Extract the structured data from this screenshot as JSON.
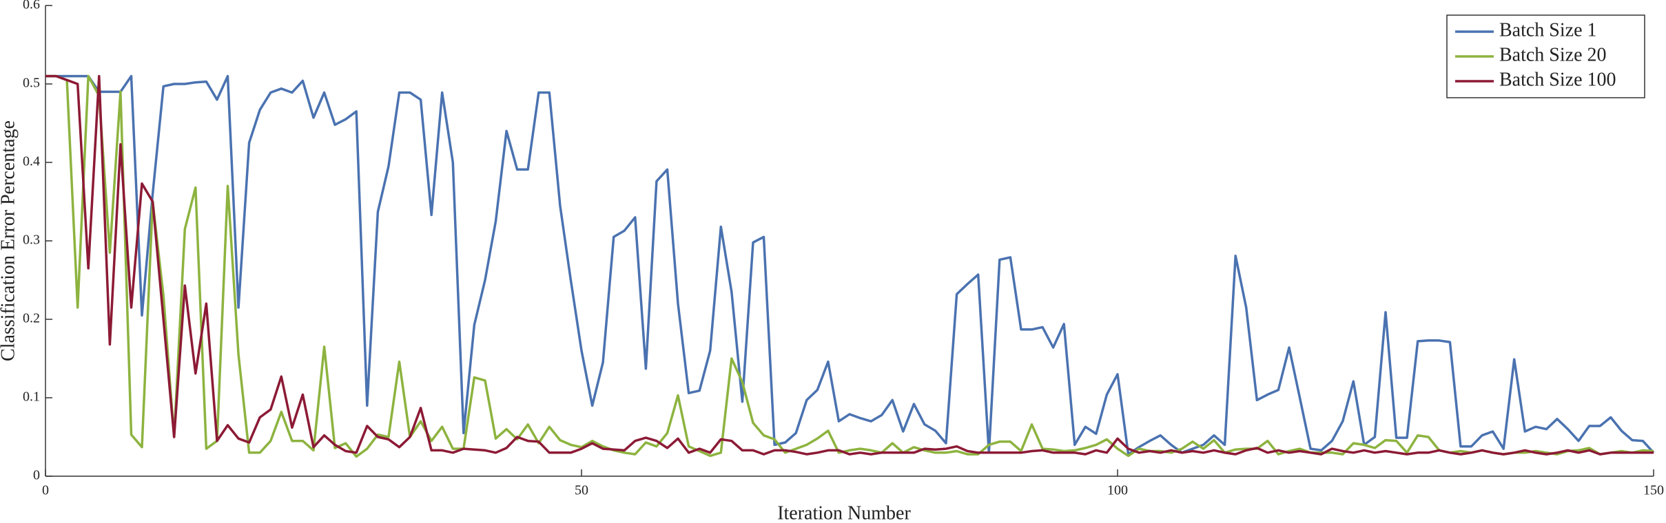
{
  "chart_data": {
    "type": "line",
    "xlabel": "Iteration Number",
    "ylabel": "Classification Error Percentage",
    "xlim": [
      0,
      150
    ],
    "ylim": [
      0,
      0.6
    ],
    "xticks": [
      0,
      50,
      100,
      150
    ],
    "yticks": [
      0,
      0.1,
      0.2,
      0.3,
      0.4,
      0.5,
      0.6
    ],
    "legend": "upper right",
    "grid": false,
    "x": [
      0,
      1,
      2,
      3,
      4,
      5,
      6,
      7,
      8,
      9,
      10,
      11,
      12,
      13,
      14,
      15,
      16,
      17,
      18,
      19,
      20,
      21,
      22,
      23,
      24,
      25,
      26,
      27,
      28,
      29,
      30,
      31,
      32,
      33,
      34,
      35,
      36,
      37,
      38,
      39,
      40,
      41,
      42,
      43,
      44,
      45,
      46,
      47,
      48,
      49,
      50,
      51,
      52,
      53,
      54,
      55,
      56,
      57,
      58,
      59,
      60,
      61,
      62,
      63,
      64,
      65,
      66,
      67,
      68,
      69,
      70,
      71,
      72,
      73,
      74,
      75,
      76,
      77,
      78,
      79,
      80,
      81,
      82,
      83,
      84,
      85,
      86,
      87,
      88,
      89,
      90,
      91,
      92,
      93,
      94,
      95,
      96,
      97,
      98,
      99,
      100,
      101,
      102,
      103,
      104,
      105,
      106,
      107,
      108,
      109,
      110,
      111,
      112,
      113,
      114,
      115,
      116,
      117,
      118,
      119,
      120,
      121,
      122,
      123,
      124,
      125,
      126,
      127,
      128,
      129,
      130,
      131,
      132,
      133,
      134,
      135,
      136,
      137,
      138,
      139,
      140,
      141,
      142,
      143,
      144,
      145,
      146,
      147,
      148,
      149,
      150
    ],
    "series": [
      {
        "name": "Batch Size 1",
        "color": "#4a72b0",
        "values": [
          0.51,
          0.51,
          0.51,
          0.51,
          0.51,
          0.49,
          0.49,
          0.49,
          0.51,
          0.205,
          0.36,
          0.497,
          0.5,
          0.5,
          0.502,
          0.503,
          0.48,
          0.51,
          0.215,
          0.425,
          0.467,
          0.489,
          0.494,
          0.489,
          0.504,
          0.457,
          0.489,
          0.448,
          0.455,
          0.465,
          0.09,
          0.337,
          0.395,
          0.489,
          0.489,
          0.48,
          0.333,
          0.489,
          0.4,
          0.055,
          0.193,
          0.25,
          0.325,
          0.44,
          0.391,
          0.391,
          0.489,
          0.489,
          0.345,
          0.25,
          0.16,
          0.09,
          0.145,
          0.305,
          0.313,
          0.33,
          0.137,
          0.376,
          0.391,
          0.22,
          0.106,
          0.109,
          0.16,
          0.318,
          0.235,
          0.095,
          0.298,
          0.305,
          0.04,
          0.043,
          0.055,
          0.097,
          0.11,
          0.146,
          0.07,
          0.079,
          0.074,
          0.07,
          0.078,
          0.097,
          0.057,
          0.092,
          0.066,
          0.058,
          0.042,
          0.232,
          0.245,
          0.257,
          0.03,
          0.276,
          0.279,
          0.187,
          0.187,
          0.19,
          0.164,
          0.194,
          0.04,
          0.063,
          0.054,
          0.104,
          0.13,
          0.028,
          0.037,
          0.045,
          0.052,
          0.04,
          0.03,
          0.035,
          0.04,
          0.052,
          0.04,
          0.281,
          0.215,
          0.097,
          0.104,
          0.11,
          0.164,
          0.1,
          0.035,
          0.033,
          0.045,
          0.07,
          0.121,
          0.04,
          0.05,
          0.209,
          0.049,
          0.049,
          0.172,
          0.173,
          0.173,
          0.171,
          0.038,
          0.038,
          0.052,
          0.057,
          0.035,
          0.149,
          0.057,
          0.063,
          0.06,
          0.073,
          0.06,
          0.045,
          0.064,
          0.064,
          0.075,
          0.058,
          0.046,
          0.045,
          0.03
        ]
      },
      {
        "name": "Batch Size 20",
        "color": "#8db33f",
        "values": [
          0.51,
          0.51,
          0.505,
          0.215,
          0.51,
          0.485,
          0.285,
          0.49,
          0.053,
          0.037,
          0.35,
          0.23,
          0.05,
          0.315,
          0.368,
          0.035,
          0.045,
          0.37,
          0.155,
          0.03,
          0.03,
          0.045,
          0.082,
          0.045,
          0.045,
          0.033,
          0.165,
          0.036,
          0.042,
          0.025,
          0.035,
          0.053,
          0.05,
          0.146,
          0.05,
          0.07,
          0.045,
          0.063,
          0.035,
          0.035,
          0.126,
          0.122,
          0.048,
          0.06,
          0.047,
          0.066,
          0.042,
          0.063,
          0.046,
          0.04,
          0.037,
          0.045,
          0.038,
          0.033,
          0.03,
          0.028,
          0.043,
          0.038,
          0.055,
          0.103,
          0.038,
          0.032,
          0.026,
          0.03,
          0.15,
          0.12,
          0.068,
          0.052,
          0.047,
          0.03,
          0.035,
          0.04,
          0.048,
          0.058,
          0.03,
          0.033,
          0.035,
          0.033,
          0.03,
          0.042,
          0.03,
          0.037,
          0.033,
          0.03,
          0.03,
          0.032,
          0.028,
          0.028,
          0.04,
          0.044,
          0.044,
          0.032,
          0.066,
          0.035,
          0.034,
          0.032,
          0.033,
          0.036,
          0.04,
          0.047,
          0.035,
          0.026,
          0.035,
          0.032,
          0.032,
          0.03,
          0.035,
          0.044,
          0.035,
          0.046,
          0.03,
          0.034,
          0.035,
          0.035,
          0.045,
          0.028,
          0.032,
          0.035,
          0.03,
          0.03,
          0.03,
          0.028,
          0.042,
          0.04,
          0.036,
          0.046,
          0.045,
          0.03,
          0.052,
          0.05,
          0.033,
          0.03,
          0.032,
          0.03,
          0.033,
          0.03,
          0.028,
          0.03,
          0.03,
          0.032,
          0.03,
          0.028,
          0.032,
          0.033,
          0.036,
          0.028,
          0.03,
          0.032,
          0.03,
          0.033,
          0.032
        ]
      },
      {
        "name": "Batch Size 100",
        "color": "#8c1a35",
        "values": [
          0.51,
          0.51,
          0.505,
          0.5,
          0.265,
          0.51,
          0.168,
          0.423,
          0.215,
          0.373,
          0.35,
          0.2,
          0.05,
          0.243,
          0.131,
          0.22,
          0.045,
          0.065,
          0.048,
          0.043,
          0.075,
          0.085,
          0.127,
          0.062,
          0.104,
          0.037,
          0.052,
          0.04,
          0.032,
          0.03,
          0.064,
          0.05,
          0.047,
          0.037,
          0.05,
          0.087,
          0.033,
          0.033,
          0.03,
          0.035,
          0.034,
          0.033,
          0.03,
          0.036,
          0.05,
          0.045,
          0.044,
          0.03,
          0.03,
          0.03,
          0.035,
          0.042,
          0.035,
          0.034,
          0.033,
          0.045,
          0.049,
          0.045,
          0.036,
          0.048,
          0.03,
          0.035,
          0.03,
          0.047,
          0.045,
          0.033,
          0.033,
          0.028,
          0.033,
          0.033,
          0.031,
          0.028,
          0.03,
          0.033,
          0.033,
          0.028,
          0.03,
          0.028,
          0.03,
          0.03,
          0.03,
          0.03,
          0.035,
          0.034,
          0.035,
          0.038,
          0.032,
          0.03,
          0.03,
          0.03,
          0.03,
          0.03,
          0.032,
          0.033,
          0.03,
          0.03,
          0.03,
          0.028,
          0.033,
          0.03,
          0.048,
          0.035,
          0.03,
          0.032,
          0.03,
          0.033,
          0.03,
          0.032,
          0.03,
          0.033,
          0.03,
          0.028,
          0.033,
          0.036,
          0.03,
          0.033,
          0.03,
          0.032,
          0.03,
          0.028,
          0.035,
          0.032,
          0.03,
          0.033,
          0.03,
          0.032,
          0.03,
          0.028,
          0.03,
          0.03,
          0.033,
          0.03,
          0.028,
          0.03,
          0.033,
          0.03,
          0.028,
          0.03,
          0.033,
          0.03,
          0.028,
          0.03,
          0.033,
          0.03,
          0.033,
          0.028,
          0.03,
          0.03,
          0.03,
          0.03,
          0.03
        ]
      }
    ]
  }
}
